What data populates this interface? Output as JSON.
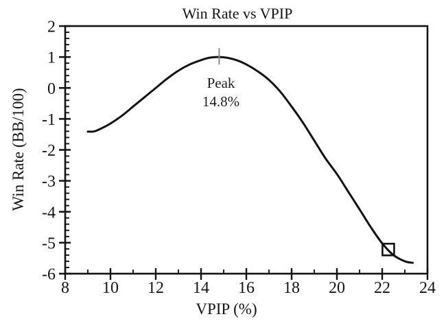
{
  "colors": {
    "line": "#121212",
    "axis": "#121212",
    "text": "#141414",
    "peak_tick_marker": "#8f8f8f",
    "background": "#ffffff"
  },
  "chart_data": {
    "type": "line",
    "title": "Win Rate vs VPIP",
    "xlabel": "VPIP (%)",
    "ylabel": "Win Rate (BB/100)",
    "xlim": [
      8,
      24
    ],
    "ylim": [
      -6,
      2
    ],
    "x_major_ticks": [
      8,
      10,
      12,
      14,
      16,
      18,
      20,
      22,
      24
    ],
    "x_minor_ticks": [
      9,
      11,
      13,
      15,
      17,
      19,
      21,
      23
    ],
    "y_major_ticks": [
      2,
      1,
      0,
      -1,
      -2,
      -3,
      -4,
      -5,
      -6
    ],
    "y_minor_step": 0.2,
    "grid": false,
    "legend": null,
    "series": [
      {
        "name": "win-rate-curve",
        "x": [
          9.0,
          9.3,
          9.7,
          10,
          10.5,
          11,
          11.5,
          12,
          12.5,
          13,
          13.5,
          14,
          14.4,
          14.8,
          15.2,
          15.6,
          16,
          16.5,
          17,
          17.5,
          18,
          18.5,
          19,
          19.5,
          20,
          20.5,
          21,
          21.5,
          22,
          22.5,
          23,
          23.35
        ],
        "y": [
          -1.41,
          -1.4,
          -1.27,
          -1.15,
          -0.9,
          -0.6,
          -0.3,
          0.0,
          0.3,
          0.56,
          0.76,
          0.9,
          0.98,
          1.0,
          0.97,
          0.89,
          0.76,
          0.54,
          0.26,
          -0.12,
          -0.6,
          -1.12,
          -1.7,
          -2.28,
          -2.78,
          -3.35,
          -3.92,
          -4.5,
          -5.02,
          -5.4,
          -5.6,
          -5.65
        ]
      }
    ],
    "annotations": {
      "peak": {
        "label_line1": "Peak",
        "label_line2": "14.8%",
        "x": 14.8,
        "y": 1.0,
        "marker": "gray-vertical-tick"
      },
      "current_position": {
        "x": 22.27,
        "y": -5.22,
        "marker": "open-square"
      }
    }
  }
}
